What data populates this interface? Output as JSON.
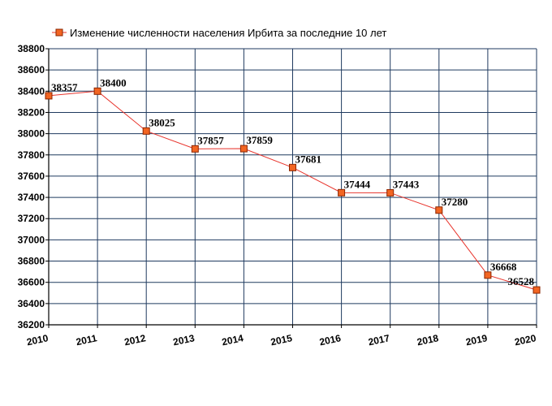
{
  "colors": {
    "line": "#e8342c",
    "marker_fill": "#f26522",
    "marker_stroke": "#8b2500",
    "grid": "#1f3a5f",
    "axis": "#000000"
  },
  "chart_data": {
    "type": "line",
    "title": "",
    "xlabel": "",
    "ylabel": "",
    "legend": {
      "position": "top",
      "entries": [
        "Изменение численности населения Ирбита за последние 10 лет"
      ]
    },
    "grid": true,
    "x": [
      "2010",
      "2011",
      "2012",
      "2013",
      "2014",
      "2015",
      "2016",
      "2017",
      "2018",
      "2019",
      "2020"
    ],
    "series": [
      {
        "name": "Изменение численности населения Ирбита за последние 10 лет",
        "values": [
          38357,
          38400,
          38025,
          37857,
          37859,
          37681,
          37444,
          37443,
          37280,
          36668,
          36528
        ],
        "labels": [
          "38357",
          "38400",
          "38025",
          "37857",
          "37859",
          "37681",
          "37444",
          "37443",
          "37280",
          "36668",
          "36528"
        ]
      }
    ],
    "ylim": [
      36200,
      38800
    ],
    "yticks": [
      "36200",
      "36400",
      "36600",
      "36800",
      "37000",
      "37200",
      "37400",
      "37600",
      "37800",
      "38000",
      "38200",
      "38400",
      "38600",
      "38800"
    ]
  }
}
